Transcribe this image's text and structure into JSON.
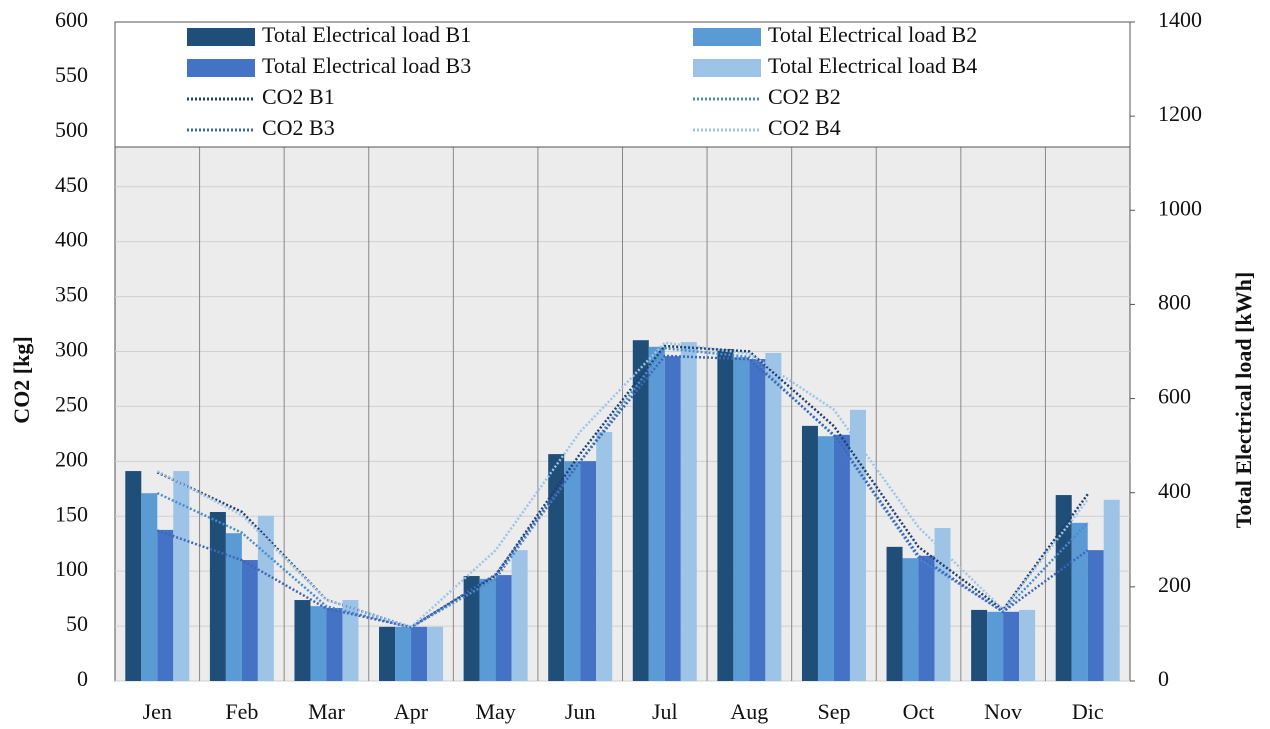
{
  "chart_data": {
    "type": "bar",
    "y_label": "CO2 [kg]",
    "y2_label": "Total Electrical  load [kWh]",
    "categories": [
      "Jen",
      "Feb",
      "Mar",
      "Apr",
      "May",
      "Jun",
      "Jul",
      "Aug",
      "Sep",
      "Oct",
      "Nov",
      "Dic"
    ],
    "ylim": [
      0,
      600
    ],
    "yticks": [
      0,
      50,
      100,
      150,
      200,
      250,
      300,
      350,
      400,
      450,
      500,
      550,
      600
    ],
    "y2lim": [
      0,
      1400
    ],
    "y2ticks": [
      0,
      200,
      400,
      600,
      800,
      1000,
      1200,
      1400
    ],
    "grid": true,
    "series": [
      {
        "name": "Total Electrical load B1",
        "type": "bar",
        "axis": "y2",
        "color": "#1f4e79",
        "values": [
          446,
          359,
          172,
          115,
          223,
          482,
          724,
          705,
          542,
          285,
          151,
          395
        ]
      },
      {
        "name": "Total Electrical load B2",
        "type": "bar",
        "axis": "y2",
        "color": "#5b9bd5",
        "values": [
          399,
          314,
          159,
          115,
          217,
          467,
          710,
          688,
          520,
          261,
          147,
          336
        ]
      },
      {
        "name": "Total Electrical load B3",
        "type": "bar",
        "axis": "y2",
        "color": "#4472c4",
        "values": [
          321,
          257,
          155,
          115,
          225,
          467,
          690,
          684,
          523,
          266,
          147,
          278
        ]
      },
      {
        "name": "Total Electrical load B4",
        "type": "bar",
        "axis": "y2",
        "color": "#9dc3e6",
        "values": [
          446,
          351,
          172,
          115,
          278,
          529,
          720,
          697,
          576,
          325,
          151,
          385
        ]
      },
      {
        "name": "CO2 B1",
        "type": "line",
        "color": "#1f3f6e",
        "values": [
          190,
          154,
          74,
          49,
          96,
          207,
          305,
          300,
          232,
          122,
          65,
          170
        ]
      },
      {
        "name": "CO2 B2",
        "type": "line",
        "color": "#4a8ccc",
        "values": [
          171,
          135,
          68,
          49,
          93,
          200,
          303,
          295,
          223,
          112,
          63,
          144
        ]
      },
      {
        "name": "CO2 B3",
        "type": "line",
        "color": "#3e66b8",
        "values": [
          137,
          110,
          66,
          49,
          97,
          200,
          296,
          293,
          224,
          114,
          63,
          119
        ]
      },
      {
        "name": "CO2 B4",
        "type": "line",
        "color": "#9dc3e6",
        "values": [
          191,
          151,
          74,
          49,
          119,
          227,
          308,
          298,
          247,
          140,
          65,
          165
        ]
      }
    ]
  }
}
